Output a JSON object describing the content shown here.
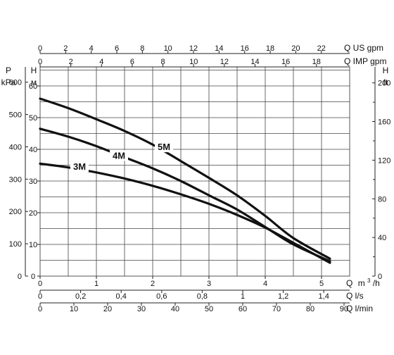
{
  "chart_data": {
    "type": "line",
    "grid": true,
    "x": {
      "unit": "m³/h",
      "label_prefix": "Q",
      "label_unit_main": "m",
      "label_unit_sup": "3",
      "label_unit_tail": "/h",
      "range": [
        0,
        5.5
      ],
      "ticks": [
        0,
        1,
        2,
        3,
        4,
        5
      ],
      "tick_labels": [
        "0",
        "1",
        "2",
        "3",
        "4",
        "5"
      ]
    },
    "y": {
      "title_symbol": "H",
      "title_unit": "м",
      "range": [
        0,
        66
      ],
      "ticks": [
        0,
        10,
        20,
        30,
        40,
        50,
        60
      ],
      "tick_labels": [
        "0",
        "10",
        "20",
        "30",
        "40",
        "50",
        "60"
      ]
    },
    "secondary_axes": {
      "kpa": {
        "title_symbol": "P",
        "title_unit": "kPa",
        "ticks": [
          0,
          100,
          200,
          300,
          400,
          500,
          600
        ],
        "tick_labels": [
          "0",
          "100",
          "200",
          "300",
          "400",
          "500",
          "600"
        ]
      },
      "ft": {
        "title_symbol": "H",
        "title_unit": "ft",
        "ticks": [
          0,
          40,
          80,
          120,
          160,
          200
        ],
        "tick_labels": [
          "0",
          "40",
          "80",
          "120",
          "160",
          "200"
        ]
      },
      "us_gpm": {
        "label": "Q US gpm",
        "ticks": [
          0,
          2,
          4,
          6,
          8,
          10,
          12,
          14,
          16,
          18,
          20,
          22
        ],
        "tick_labels": [
          "0",
          "2",
          "4",
          "6",
          "8",
          "10",
          "12",
          "14",
          "16",
          "18",
          "20",
          "22"
        ]
      },
      "imp_gpm": {
        "label": "Q IMP gpm",
        "ticks": [
          0,
          2,
          4,
          6,
          8,
          10,
          12,
          14,
          16,
          18
        ],
        "tick_labels": [
          "0",
          "2",
          "4",
          "6",
          "8",
          "10",
          "12",
          "14",
          "16",
          "18"
        ]
      },
      "ls": {
        "label": "Q l/s",
        "ticks": [
          0,
          0.2,
          0.4,
          0.6,
          0.8,
          1,
          1.2,
          1.4
        ],
        "tick_labels": [
          "0",
          "0,2",
          "0,4",
          "0,6",
          "0,8",
          "1",
          "1,2",
          "1,4"
        ]
      },
      "lmin": {
        "label": "Q l/min",
        "ticks": [
          0,
          10,
          20,
          30,
          40,
          50,
          60,
          70,
          80,
          90
        ],
        "tick_labels": [
          "0",
          "10",
          "20",
          "30",
          "40",
          "50",
          "60",
          "70",
          "80",
          "90"
        ]
      }
    },
    "series": [
      {
        "name": "5M",
        "label_at": [
          2.2,
          40.2
        ],
        "points": [
          [
            0,
            56
          ],
          [
            0.5,
            53
          ],
          [
            1,
            49.5
          ],
          [
            1.5,
            45.8
          ],
          [
            2,
            41.5
          ],
          [
            2.5,
            36.3
          ],
          [
            3,
            31
          ],
          [
            3.5,
            25.5
          ],
          [
            4,
            19
          ],
          [
            4.5,
            12
          ],
          [
            5.15,
            5.5
          ]
        ]
      },
      {
        "name": "4M",
        "label_at": [
          1.4,
          37.5
        ],
        "points": [
          [
            0,
            46.5
          ],
          [
            0.5,
            44
          ],
          [
            1,
            41
          ],
          [
            1.5,
            37.5
          ],
          [
            2,
            34
          ],
          [
            2.5,
            30
          ],
          [
            3,
            25.5
          ],
          [
            3.5,
            21
          ],
          [
            4,
            15.5
          ],
          [
            4.5,
            10
          ],
          [
            5.15,
            4.7
          ]
        ]
      },
      {
        "name": "3M",
        "label_at": [
          0.7,
          34
        ],
        "points": [
          [
            0,
            35.5
          ],
          [
            0.5,
            34.3
          ],
          [
            1,
            32.7
          ],
          [
            1.5,
            30.8
          ],
          [
            2,
            28.5
          ],
          [
            2.5,
            25.8
          ],
          [
            3,
            22.8
          ],
          [
            3.5,
            19.3
          ],
          [
            4,
            15.3
          ],
          [
            4.5,
            10.5
          ],
          [
            5.15,
            4.2
          ]
        ]
      }
    ]
  }
}
